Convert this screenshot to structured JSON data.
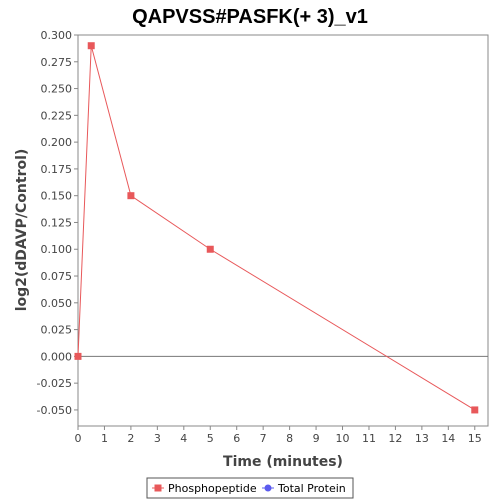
{
  "chart_data": {
    "type": "line",
    "title": "QAPVSS#PASFK(+ 3)_v1",
    "xlabel": "Time (minutes)",
    "ylabel": "log2(dDAVP/Control)",
    "xlim": [
      0,
      15.5
    ],
    "ylim": [
      -0.065,
      0.3
    ],
    "x_ticks": [
      0,
      1,
      2,
      3,
      4,
      5,
      6,
      7,
      8,
      9,
      10,
      11,
      12,
      13,
      14,
      15
    ],
    "y_ticks": [
      "-0.050",
      "-0.025",
      "0.000",
      "0.025",
      "0.050",
      "0.075",
      "0.100",
      "0.125",
      "0.150",
      "0.175",
      "0.200",
      "0.225",
      "0.250",
      "0.275",
      "0.300"
    ],
    "reference_line_y": 0,
    "grid": false,
    "legend_position": "bottom-center",
    "series": [
      {
        "name": "Phosphopeptide",
        "color": "#e8585a",
        "marker": "square",
        "points": [
          {
            "x": 0,
            "y": 0.0
          },
          {
            "x": 0.5,
            "y": 0.29
          },
          {
            "x": 2,
            "y": 0.15
          },
          {
            "x": 5,
            "y": 0.1
          },
          {
            "x": 15,
            "y": -0.05
          }
        ]
      },
      {
        "name": "Total Protein",
        "color": "#5b5bef",
        "marker": "circle",
        "points": []
      }
    ]
  }
}
